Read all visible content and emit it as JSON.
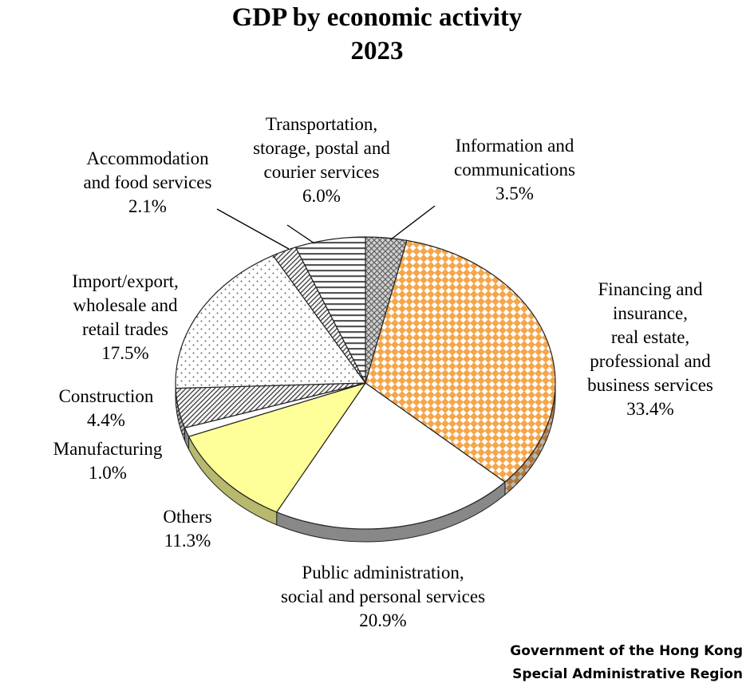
{
  "chart_data": {
    "type": "pie",
    "title": "GDP by economic activity",
    "subtitle": "2023",
    "categories": [
      "Information and communications",
      "Financing and insurance, real estate, professional and business services",
      "Public administration, social and personal services",
      "Others",
      "Manufacturing",
      "Construction",
      "Import/export, wholesale and retail trades",
      "Accommodation and food services",
      "Transportation, storage, postal and courier services"
    ],
    "values": [
      3.5,
      33.4,
      20.9,
      11.3,
      1.0,
      4.4,
      17.5,
      2.1,
      6.0
    ],
    "unit": "%",
    "value_labels": [
      "3.5%",
      "33.4%",
      "20.9%",
      "11.3%",
      "1.0%",
      "4.4%",
      "17.5%",
      "2.1%",
      "6.0%"
    ],
    "label_lines": [
      [
        "Information and",
        "communications"
      ],
      [
        "Financing and",
        "insurance,",
        "real estate,",
        "professional and",
        "business services"
      ],
      [
        "Public administration,",
        "social and personal services"
      ],
      [
        "Others"
      ],
      [
        "Manufacturing"
      ],
      [
        "Construction"
      ],
      [
        "Import/export,",
        "wholesale and",
        "retail trades"
      ],
      [
        "Accommodation",
        "and food services"
      ],
      [
        "Transportation,",
        "storage, postal and",
        "courier services"
      ]
    ],
    "slice_styles": [
      {
        "fill": "#c8c8c8",
        "pattern": "crosshatch"
      },
      {
        "fill": "#f7b05a",
        "pattern": "diamond"
      },
      {
        "fill": "#ffffff",
        "pattern": "none"
      },
      {
        "fill": "#ffff99",
        "pattern": "none"
      },
      {
        "fill": "#ffffff",
        "pattern": "none"
      },
      {
        "fill": "#ffffff",
        "pattern": "diagonal"
      },
      {
        "fill": "#ffffff",
        "pattern": "dots"
      },
      {
        "fill": "#ffffff",
        "pattern": "diagonal"
      },
      {
        "fill": "#ffffff",
        "pattern": "horizontal"
      }
    ],
    "start_angle_deg": 90,
    "direction": "clockwise",
    "view": "3d-tilted",
    "legend": "none"
  },
  "footer": {
    "line1": "Government of the Hong Kong",
    "line2": "Special Administrative Region"
  }
}
